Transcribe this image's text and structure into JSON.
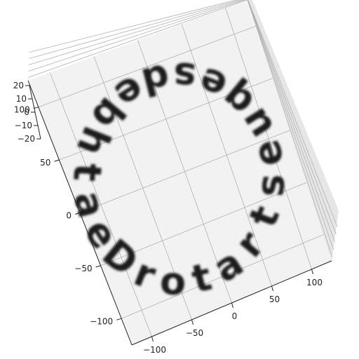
{
  "chart_data": {
    "type": "3d-text-ring",
    "text": "Deathbedsequestrator",
    "text_color": "#1e1e1e",
    "pane_colors": {
      "floor": "#f2f2f2",
      "wall_back": "#ebebeb",
      "wall_side": "#e6e6e6"
    },
    "grid": true,
    "axes": {
      "x": {
        "ticks": [
          -100,
          -50,
          0,
          50,
          100
        ],
        "tick_labels": [
          "−100",
          "−50",
          "0",
          "50",
          "100"
        ],
        "label": ""
      },
      "y": {
        "ticks": [
          -100,
          -50,
          0,
          50,
          100
        ],
        "tick_labels": [
          "−100",
          "−50",
          "0",
          "50",
          "100"
        ],
        "label": ""
      },
      "z": {
        "ticks": [
          -20,
          -10,
          0,
          10,
          20
        ],
        "tick_labels": [
          "−20",
          "−10",
          "0",
          "10",
          "20"
        ],
        "label": ""
      }
    }
  }
}
